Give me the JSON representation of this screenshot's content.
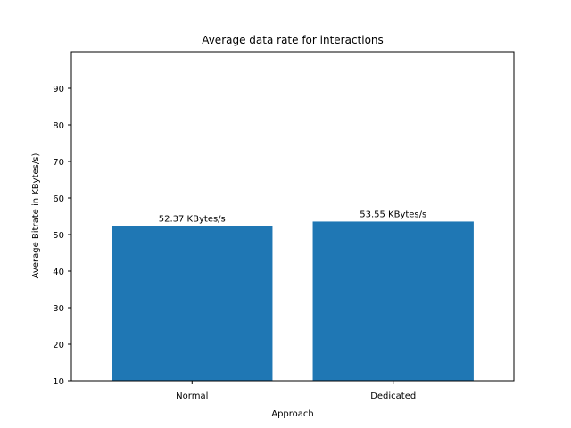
{
  "chart_data": {
    "type": "bar",
    "title": "Average data rate for interactions",
    "xlabel": "Approach",
    "ylabel": "Average Bitrate in KBytes/s)",
    "categories": [
      "Normal",
      "Dedicated"
    ],
    "values": [
      52.37,
      53.55
    ],
    "bar_labels": [
      "52.37 KBytes/s",
      "53.55 KBytes/s"
    ],
    "ylim": [
      10,
      100
    ],
    "yticks": [
      10,
      20,
      30,
      40,
      50,
      60,
      70,
      80,
      90
    ],
    "grid": false,
    "legend": "none",
    "colors": {
      "bar": "#1f77b4",
      "axes": "#000000",
      "background": "#ffffff"
    }
  }
}
